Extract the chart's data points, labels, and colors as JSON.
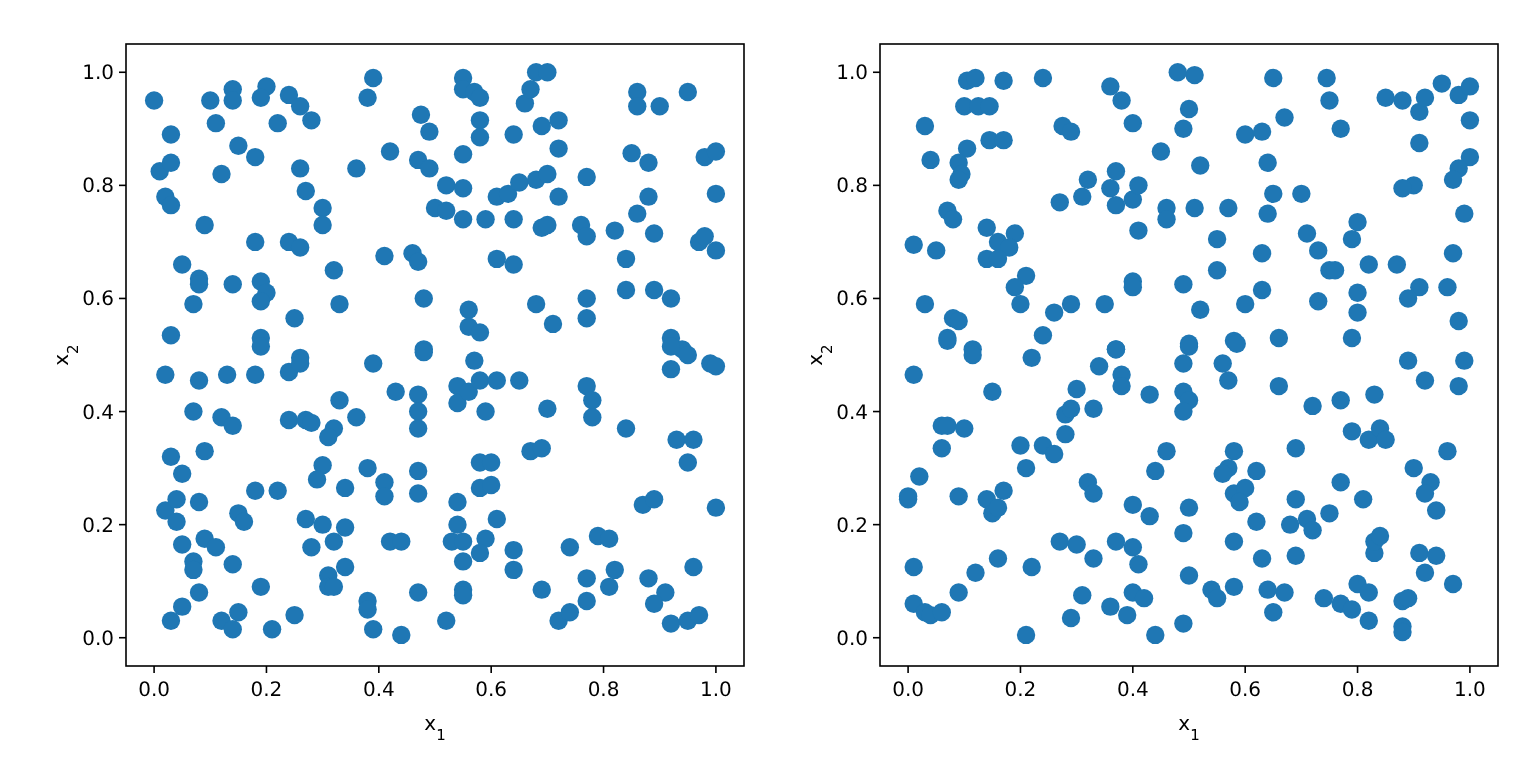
{
  "chart_data": [
    {
      "type": "scatter",
      "xlabel": "x$_{1}$",
      "ylabel": "x$_{2}$",
      "marker": "circle",
      "xlim": [
        -0.05,
        1.05
      ],
      "ylim": [
        -0.05,
        1.05
      ],
      "xticks": [
        {
          "value": 0,
          "label": "0.0"
        },
        {
          "value": 0.2,
          "label": "0.2"
        },
        {
          "value": 0.4,
          "label": "0.4"
        },
        {
          "value": 0.6,
          "label": "0.6"
        },
        {
          "value": 0.8,
          "label": "0.8"
        },
        {
          "value": 1,
          "label": "1.0"
        }
      ],
      "yticks": [
        {
          "value": 0,
          "label": "0.0"
        },
        {
          "value": 0.2,
          "label": "0.2"
        },
        {
          "value": 0.4,
          "label": "0.4"
        },
        {
          "value": 0.6,
          "label": "0.6"
        },
        {
          "value": 0.8,
          "label": "0.8"
        },
        {
          "value": 1,
          "label": "1.0"
        }
      ],
      "series": [
        {
          "color": "#1f77b4",
          "x": [
            0.0,
            0.1,
            0.14,
            0.14,
            0.2,
            0.19,
            0.24,
            0.26,
            0.28,
            0.22,
            0.11,
            0.03,
            0.15,
            0.18,
            0.01,
            0.03,
            0.12,
            0.26,
            0.27,
            0.3,
            0.3,
            0.02,
            0.03,
            0.09,
            0.18,
            0.24,
            0.26,
            0.05,
            0.08,
            0.08,
            0.14,
            0.19,
            0.2,
            0.19,
            0.07,
            0.25,
            0.32,
            0.33,
            0.03,
            0.19,
            0.39,
            0.38,
            0.36,
            0.42,
            0.41,
            0.46,
            0.47,
            0.48,
            0.475,
            0.49,
            0.47,
            0.49,
            0.52,
            0.55,
            0.5,
            0.52,
            0.55,
            0.59,
            0.55,
            0.55,
            0.57,
            0.58,
            0.58,
            0.58,
            0.55,
            0.64,
            0.66,
            0.67,
            0.68,
            0.7,
            0.69,
            0.72,
            0.72,
            0.61,
            0.63,
            0.65,
            0.68,
            0.7,
            0.72,
            0.64,
            0.69,
            0.7,
            0.61,
            0.64,
            0.68,
            0.71,
            0.56,
            0.56,
            0.58,
            0.48,
            0.77,
            0.76,
            0.77,
            0.82,
            0.86,
            0.88,
            0.89,
            0.84,
            0.84,
            0.89,
            0.92,
            0.77,
            0.77,
            0.85,
            0.88,
            0.86,
            0.86,
            0.9,
            0.95,
            0.98,
            1.0,
            1.0,
            0.97,
            0.98,
            1.0,
            0.92,
            0.94,
            0.19,
            0.48,
            0.92,
            0.92,
            0.95,
            0.99,
            1.0,
            0.02,
            0.08,
            0.13,
            0.18,
            0.24,
            0.26,
            0.26,
            0.39,
            0.57,
            0.43,
            0.47,
            0.47,
            0.47,
            0.54,
            0.54,
            0.56,
            0.58,
            0.61,
            0.65,
            0.59,
            0.7,
            0.77,
            0.78,
            0.78,
            0.84,
            0.93,
            0.96,
            0.95,
            0.07,
            0.12,
            0.14,
            0.24,
            0.27,
            0.28,
            0.33,
            0.36,
            0.32,
            0.31,
            0.03,
            0.09,
            0.05,
            0.67,
            0.69,
            0.3,
            0.29,
            0.34,
            0.38,
            0.41,
            0.41,
            0.47,
            0.47,
            0.58,
            0.6,
            0.58,
            0.6,
            0.54,
            0.61,
            0.54,
            0.18,
            0.22,
            0.02,
            0.04,
            0.08,
            0.04,
            0.15,
            0.16,
            0.27,
            0.3,
            0.34,
            0.05,
            0.09,
            0.11,
            0.28,
            0.32,
            0.42,
            0.44,
            0.53,
            0.55,
            0.59,
            0.58,
            0.55,
            0.64,
            0.64,
            0.74,
            0.79,
            0.81,
            0.87,
            0.89,
            1.0,
            0.07,
            0.07,
            0.14,
            0.34,
            0.31,
            0.31,
            0.32,
            0.19,
            0.08,
            0.05,
            0.03,
            0.12,
            0.15,
            0.14,
            0.21,
            0.25,
            0.38,
            0.38,
            0.39,
            0.44,
            0.47,
            0.52,
            0.55,
            0.55,
            0.69,
            0.72,
            0.74,
            0.77,
            0.77,
            0.81,
            0.82,
            0.88,
            0.91,
            0.89,
            0.92,
            0.96,
            0.95,
            0.97
          ],
          "values": [
            0.95,
            0.95,
            0.97,
            0.95,
            0.975,
            0.955,
            0.96,
            0.94,
            0.915,
            0.91,
            0.91,
            0.89,
            0.87,
            0.85,
            0.825,
            0.84,
            0.82,
            0.83,
            0.79,
            0.76,
            0.73,
            0.78,
            0.765,
            0.73,
            0.7,
            0.7,
            0.69,
            0.66,
            0.635,
            0.625,
            0.625,
            0.63,
            0.61,
            0.595,
            0.59,
            0.565,
            0.65,
            0.59,
            0.535,
            0.53,
            0.99,
            0.955,
            0.83,
            0.86,
            0.675,
            0.68,
            0.665,
            0.6,
            0.925,
            0.895,
            0.845,
            0.83,
            0.8,
            0.795,
            0.76,
            0.755,
            0.74,
            0.74,
            0.99,
            0.97,
            0.965,
            0.955,
            0.915,
            0.885,
            0.855,
            0.89,
            0.945,
            0.97,
            1.0,
            1.0,
            0.905,
            0.915,
            0.865,
            0.78,
            0.785,
            0.805,
            0.81,
            0.82,
            0.78,
            0.74,
            0.725,
            0.73,
            0.67,
            0.66,
            0.59,
            0.555,
            0.58,
            0.55,
            0.54,
            0.51,
            0.815,
            0.73,
            0.71,
            0.72,
            0.75,
            0.78,
            0.715,
            0.67,
            0.615,
            0.615,
            0.6,
            0.6,
            0.565,
            0.857,
            0.84,
            0.965,
            0.94,
            0.94,
            0.965,
            0.85,
            0.86,
            0.785,
            0.7,
            0.71,
            0.685,
            0.53,
            0.51,
            0.515,
            0.505,
            0.515,
            0.475,
            0.5,
            0.485,
            0.48,
            0.465,
            0.455,
            0.465,
            0.465,
            0.47,
            0.495,
            0.485,
            0.485,
            0.49,
            0.435,
            0.43,
            0.4,
            0.37,
            0.445,
            0.415,
            0.435,
            0.455,
            0.455,
            0.455,
            0.4,
            0.405,
            0.445,
            0.42,
            0.39,
            0.37,
            0.35,
            0.35,
            0.31,
            0.4,
            0.39,
            0.375,
            0.385,
            0.385,
            0.38,
            0.42,
            0.39,
            0.37,
            0.355,
            0.32,
            0.33,
            0.29,
            0.33,
            0.335,
            0.305,
            0.28,
            0.265,
            0.3,
            0.275,
            0.25,
            0.295,
            0.255,
            0.31,
            0.31,
            0.265,
            0.27,
            0.24,
            0.21,
            0.2,
            0.26,
            0.26,
            0.225,
            0.245,
            0.24,
            0.205,
            0.22,
            0.205,
            0.21,
            0.2,
            0.195,
            0.165,
            0.175,
            0.16,
            0.16,
            0.17,
            0.17,
            0.17,
            0.17,
            0.17,
            0.175,
            0.15,
            0.135,
            0.155,
            0.12,
            0.16,
            0.18,
            0.175,
            0.235,
            0.245,
            0.23,
            0.135,
            0.12,
            0.13,
            0.125,
            0.11,
            0.09,
            0.09,
            0.09,
            0.08,
            0.055,
            0.03,
            0.03,
            0.045,
            0.015,
            0.015,
            0.04,
            0.065,
            0.05,
            0.015,
            0.005,
            0.08,
            0.03,
            0.085,
            0.075,
            0.085,
            0.03,
            0.045,
            0.105,
            0.065,
            0.09,
            0.12,
            0.105,
            0.08,
            0.06,
            0.025,
            0.125,
            0.03,
            0.04
          ]
        }
      ]
    },
    {
      "type": "scatter",
      "xlabel": "x$_{1}$",
      "ylabel": "x$_{2}$",
      "marker": "circle",
      "xlim": [
        -0.05,
        1.05
      ],
      "ylim": [
        -0.05,
        1.05
      ],
      "xticks": [
        {
          "value": 0,
          "label": "0.0"
        },
        {
          "value": 0.2,
          "label": "0.2"
        },
        {
          "value": 0.4,
          "label": "0.4"
        },
        {
          "value": 0.6,
          "label": "0.6"
        },
        {
          "value": 0.8,
          "label": "0.8"
        },
        {
          "value": 1,
          "label": "1.0"
        }
      ],
      "yticks": [
        {
          "value": 0,
          "label": "0.0"
        },
        {
          "value": 0.2,
          "label": "0.2"
        },
        {
          "value": 0.4,
          "label": "0.4"
        },
        {
          "value": 0.6,
          "label": "0.6"
        },
        {
          "value": 0.8,
          "label": "0.8"
        },
        {
          "value": 1,
          "label": "1.0"
        }
      ],
      "series": [
        {
          "color": "#1f77b4",
          "x": [
            0.03,
            0.04,
            0.105,
            0.12,
            0.17,
            0.1,
            0.125,
            0.145,
            0.24,
            0.145,
            0.17,
            0.105,
            0.09,
            0.095,
            0.09,
            0.275,
            0.29,
            0.07,
            0.08,
            0.14,
            0.16,
            0.19,
            0.18,
            0.14,
            0.16,
            0.01,
            0.05,
            0.21,
            0.19,
            0.2,
            0.03,
            0.08,
            0.09,
            0.07,
            0.115,
            0.24,
            0.26,
            0.29,
            0.35,
            0.27,
            0.31,
            0.32,
            0.36,
            0.38,
            0.4,
            0.37,
            0.36,
            0.37,
            0.4,
            0.41,
            0.41,
            0.4,
            0.4,
            0.37,
            0.45,
            0.48,
            0.51,
            0.5,
            0.49,
            0.52,
            0.46,
            0.46,
            0.51,
            0.57,
            0.55,
            0.55,
            0.49,
            0.52,
            0.5,
            0.58,
            0.6,
            0.63,
            0.63,
            0.64,
            0.65,
            0.64,
            0.6,
            0.63,
            0.67,
            0.65,
            0.66,
            0.7,
            0.71,
            0.73,
            0.75,
            0.76,
            0.73,
            0.745,
            0.75,
            0.77,
            0.79,
            0.8,
            0.82,
            0.8,
            0.8,
            0.79,
            0.85,
            0.88,
            0.91,
            0.92,
            0.95,
            0.98,
            1.0,
            1.0,
            0.91,
            1.0,
            0.98,
            0.97,
            0.9,
            0.88,
            0.99,
            0.97,
            0.87,
            0.91,
            0.89,
            0.96,
            0.98,
            0.07,
            0.115,
            0.22,
            0.37,
            0.5,
            0.585,
            0.01,
            0.15,
            0.3,
            0.34,
            0.38,
            0.38,
            0.43,
            0.49,
            0.49,
            0.5,
            0.49,
            0.56,
            0.57,
            0.66,
            0.72,
            0.77,
            0.83,
            0.89,
            0.92,
            0.99,
            0.98,
            0.06,
            0.07,
            0.1,
            0.06,
            0.28,
            0.29,
            0.33,
            0.28,
            0.2,
            0.24,
            0.26,
            0.21,
            0.02,
            0.0,
            0.0,
            0.09,
            0.14,
            0.17,
            0.15,
            0.16,
            0.32,
            0.33,
            0.4,
            0.43,
            0.44,
            0.46,
            0.5,
            0.49,
            0.58,
            0.57,
            0.56,
            0.62,
            0.58,
            0.6,
            0.59,
            0.62,
            0.58,
            0.69,
            0.69,
            0.68,
            0.71,
            0.72,
            0.75,
            0.77,
            0.81,
            0.79,
            0.82,
            0.84,
            0.85,
            0.9,
            0.93,
            0.92,
            0.94,
            0.96,
            0.83,
            0.83,
            0.84,
            0.91,
            0.94,
            0.92,
            0.97,
            0.01,
            0.12,
            0.16,
            0.22,
            0.09,
            0.01,
            0.03,
            0.04,
            0.06,
            0.21,
            0.29,
            0.27,
            0.3,
            0.33,
            0.37,
            0.4,
            0.41,
            0.31,
            0.36,
            0.39,
            0.4,
            0.42,
            0.44,
            0.49,
            0.5,
            0.54,
            0.55,
            0.58,
            0.63,
            0.64,
            0.65,
            0.67,
            0.69,
            0.74,
            0.77,
            0.79,
            0.8,
            0.82,
            0.82,
            0.88,
            0.89,
            0.88,
            0.88
          ],
          "values": [
            0.905,
            0.845,
            0.985,
            0.99,
            0.985,
            0.94,
            0.94,
            0.94,
            0.99,
            0.88,
            0.88,
            0.865,
            0.84,
            0.82,
            0.81,
            0.905,
            0.895,
            0.755,
            0.74,
            0.725,
            0.7,
            0.715,
            0.69,
            0.67,
            0.67,
            0.695,
            0.685,
            0.64,
            0.62,
            0.59,
            0.59,
            0.565,
            0.56,
            0.53,
            0.51,
            0.535,
            0.575,
            0.59,
            0.59,
            0.77,
            0.78,
            0.81,
            0.975,
            0.95,
            0.91,
            0.825,
            0.795,
            0.765,
            0.775,
            0.8,
            0.72,
            0.63,
            0.62,
            0.51,
            0.86,
            1.0,
            0.995,
            0.935,
            0.9,
            0.835,
            0.76,
            0.74,
            0.76,
            0.76,
            0.705,
            0.65,
            0.625,
            0.58,
            0.52,
            0.525,
            0.59,
            0.615,
            0.68,
            0.75,
            0.785,
            0.84,
            0.89,
            0.895,
            0.92,
            0.99,
            0.53,
            0.785,
            0.715,
            0.685,
            0.65,
            0.65,
            0.595,
            0.99,
            0.95,
            0.9,
            0.705,
            0.735,
            0.66,
            0.61,
            0.575,
            0.53,
            0.955,
            0.95,
            0.93,
            0.955,
            0.98,
            0.96,
            0.975,
            0.915,
            0.875,
            0.85,
            0.83,
            0.81,
            0.8,
            0.795,
            0.75,
            0.68,
            0.66,
            0.62,
            0.6,
            0.62,
            0.56,
            0.525,
            0.5,
            0.495,
            0.51,
            0.515,
            0.52,
            0.465,
            0.435,
            0.44,
            0.48,
            0.465,
            0.445,
            0.43,
            0.485,
            0.435,
            0.42,
            0.4,
            0.485,
            0.455,
            0.445,
            0.41,
            0.42,
            0.43,
            0.49,
            0.455,
            0.49,
            0.445,
            0.375,
            0.375,
            0.37,
            0.335,
            0.395,
            0.405,
            0.405,
            0.36,
            0.34,
            0.34,
            0.325,
            0.3,
            0.285,
            0.245,
            0.25,
            0.25,
            0.245,
            0.26,
            0.22,
            0.23,
            0.275,
            0.255,
            0.235,
            0.215,
            0.295,
            0.33,
            0.23,
            0.185,
            0.33,
            0.3,
            0.29,
            0.295,
            0.255,
            0.265,
            0.24,
            0.205,
            0.17,
            0.335,
            0.245,
            0.2,
            0.21,
            0.19,
            0.22,
            0.275,
            0.245,
            0.365,
            0.35,
            0.37,
            0.35,
            0.3,
            0.275,
            0.255,
            0.225,
            0.33,
            0.15,
            0.17,
            0.18,
            0.15,
            0.145,
            0.115,
            0.095,
            0.125,
            0.115,
            0.14,
            0.125,
            0.08,
            0.06,
            0.045,
            0.04,
            0.045,
            0.005,
            0.035,
            0.17,
            0.165,
            0.14,
            0.17,
            0.16,
            0.13,
            0.075,
            0.055,
            0.04,
            0.08,
            0.07,
            0.005,
            0.025,
            0.11,
            0.085,
            0.07,
            0.09,
            0.14,
            0.085,
            0.045,
            0.08,
            0.145,
            0.07,
            0.06,
            0.05,
            0.095,
            0.08,
            0.03,
            0.065,
            0.07,
            0.02,
            0.01
          ]
        }
      ]
    }
  ]
}
